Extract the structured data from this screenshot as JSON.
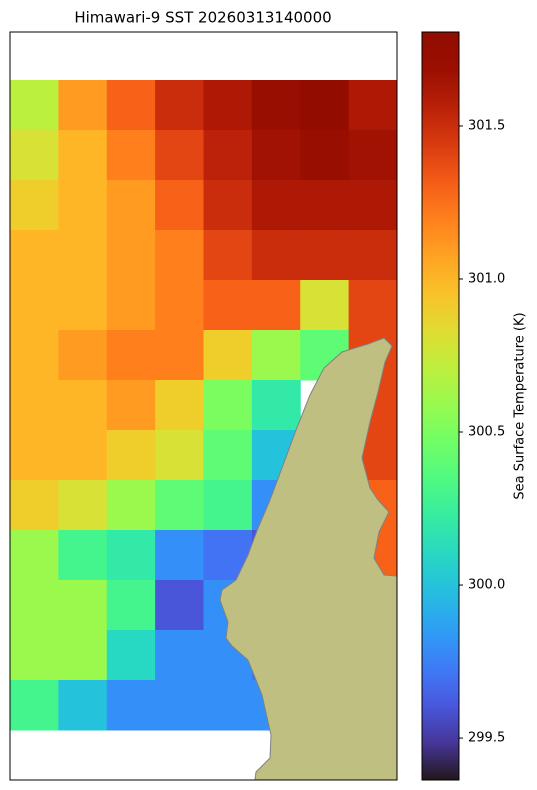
{
  "chart_data": {
    "type": "heatmap",
    "title": "Himawari-9 SST 20260313140000",
    "colorbar_label": "Sea Surface Temperature (K)",
    "cmap": "turbo",
    "clim": [
      299.363,
      301.807
    ],
    "cticks": [
      299.5,
      {
        "value": 300,
        "label": "300.0"
      },
      300.5,
      {
        "value": 301,
        "label": "301.0"
      },
      301.5
    ],
    "land_color": "#bfbf82",
    "values": [
      [
        300.7,
        301.1,
        301.3,
        301.5,
        301.6,
        301.7,
        301.75,
        301.6
      ],
      [
        300.8,
        301.0,
        301.2,
        301.4,
        301.55,
        301.65,
        301.7,
        301.65
      ],
      [
        300.9,
        301.0,
        301.1,
        301.3,
        301.5,
        301.6,
        301.6,
        301.6
      ],
      [
        301.0,
        301.0,
        301.1,
        301.2,
        301.4,
        301.5,
        301.5,
        301.5
      ],
      [
        301.0,
        301.0,
        301.1,
        301.2,
        301.3,
        301.3,
        300.8,
        301.4
      ],
      [
        301.0,
        301.1,
        301.2,
        301.2,
        300.9,
        300.6,
        300.4,
        301.4
      ],
      [
        301.0,
        301.0,
        301.1,
        300.9,
        300.5,
        300.2,
        null,
        301.4
      ],
      [
        301.0,
        301.0,
        300.9,
        300.8,
        300.4,
        300.0,
        null,
        301.4
      ],
      [
        300.9,
        300.8,
        300.6,
        300.4,
        300.3,
        299.8,
        null,
        301.3
      ],
      [
        300.6,
        300.3,
        300.2,
        299.8,
        299.7,
        299.6,
        null,
        301.3
      ],
      [
        300.6,
        300.6,
        300.3,
        299.6,
        299.8,
        null,
        null,
        null
      ],
      [
        300.6,
        300.6,
        300.1,
        299.8,
        299.8,
        299.7,
        null,
        null
      ],
      [
        300.3,
        300.0,
        299.8,
        299.8,
        299.8,
        299.8,
        null,
        null
      ]
    ]
  }
}
